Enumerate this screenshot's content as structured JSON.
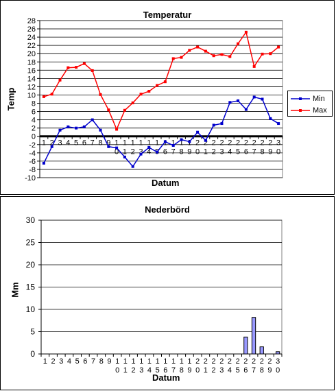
{
  "chart_data": [
    {
      "type": "line",
      "title": "Temperatur",
      "xlabel": "Datum",
      "ylabel": "Temp",
      "ylim": [
        -10,
        28
      ],
      "ytick_step": 2,
      "categories": [
        "1",
        "2",
        "3",
        "4",
        "5",
        "6",
        "7",
        "8",
        "9",
        "10",
        "11",
        "12",
        "13",
        "14",
        "15",
        "16",
        "17",
        "18",
        "19",
        "20",
        "21",
        "22",
        "23",
        "24",
        "25",
        "26",
        "27",
        "28",
        "29",
        "30"
      ],
      "series": [
        {
          "name": "Min",
          "color": "#0000cc",
          "values": [
            -6.5,
            -2.5,
            1.5,
            2.3,
            2.0,
            2.3,
            4.0,
            1.5,
            -2.5,
            -2.8,
            -5.0,
            -7.3,
            -4.3,
            -2.7,
            -3.8,
            -1.3,
            -2.2,
            -0.8,
            -1.3,
            1.0,
            -1.0,
            2.7,
            3.1,
            8.2,
            8.6,
            6.5,
            9.5,
            9.0,
            4.3,
            3.1
          ]
        },
        {
          "name": "Max",
          "color": "#ff0000",
          "values": [
            9.6,
            10.2,
            13.6,
            16.6,
            16.7,
            17.6,
            15.9,
            10.1,
            6.4,
            1.7,
            6.3,
            8.1,
            10.2,
            10.9,
            12.3,
            13.2,
            18.8,
            19.1,
            20.8,
            21.6,
            20.6,
            19.5,
            19.8,
            19.3,
            22.4,
            25.2,
            16.9,
            19.9,
            20.0,
            21.6
          ]
        }
      ],
      "grid": true,
      "legend": "right"
    },
    {
      "type": "bar",
      "title": "Nederbörd",
      "xlabel": "Datum",
      "ylabel": "Mm",
      "ylim": [
        0,
        30
      ],
      "ytick_step": 5,
      "categories": [
        "1",
        "2",
        "3",
        "4",
        "5",
        "6",
        "7",
        "8",
        "9",
        "10",
        "11",
        "12",
        "13",
        "14",
        "15",
        "16",
        "17",
        "18",
        "19",
        "20",
        "21",
        "22",
        "23",
        "24",
        "25",
        "26",
        "27",
        "28",
        "29",
        "30"
      ],
      "values": [
        0,
        0,
        0,
        0,
        0,
        0,
        0,
        0,
        0,
        0,
        0,
        0,
        0,
        0,
        0,
        0,
        0,
        0,
        0,
        0,
        0,
        0,
        0,
        0,
        0,
        3.8,
        8.2,
        1.6,
        0,
        0.5
      ],
      "bar_color": "#9999ff",
      "grid": true
    }
  ]
}
